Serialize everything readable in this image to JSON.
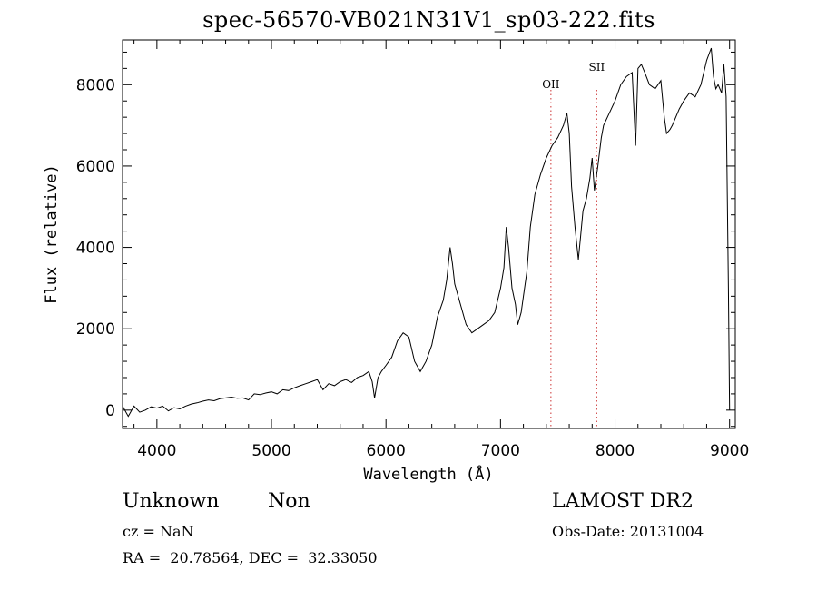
{
  "title": "spec-56570-VB021N31V1_sp03-222.fits",
  "info": {
    "class": "Unknown",
    "subclass": "Non",
    "survey": "LAMOST DR2",
    "cz": "cz = NaN",
    "obs_date": "Obs-Date: 20131004",
    "coords": "RA =  20.78564, DEC =  32.33050"
  },
  "chart_data": {
    "type": "line",
    "xlabel": "Wavelength (Å)",
    "ylabel": "Flux (relative)",
    "xlim": [
      3700,
      9050
    ],
    "ylim": [
      -450,
      9100
    ],
    "xticks": [
      4000,
      5000,
      6000,
      7000,
      8000,
      9000
    ],
    "yticks": [
      0,
      2000,
      4000,
      6000,
      8000
    ],
    "line_color": "#000000",
    "marker_color": "#cc3333",
    "lines": [
      {
        "name": "OII",
        "x": 7440
      },
      {
        "name": "SII",
        "x": 7840
      }
    ],
    "series": [
      {
        "x": [
          3700,
          3750,
          3800,
          3850,
          3900,
          3950,
          4000,
          4050,
          4100,
          4150,
          4200,
          4250,
          4300,
          4350,
          4400,
          4450,
          4500,
          4550,
          4600,
          4650,
          4700,
          4750,
          4800,
          4850,
          4900,
          4950,
          5000,
          5050,
          5100,
          5150,
          5200,
          5250,
          5300,
          5350,
          5400,
          5450,
          5500,
          5550,
          5600,
          5650,
          5700,
          5750,
          5800,
          5850,
          5880,
          5900,
          5930,
          5960,
          6000,
          6050,
          6100,
          6150,
          6200,
          6250,
          6300,
          6350,
          6400,
          6450,
          6500,
          6530,
          6560,
          6580,
          6600,
          6650,
          6700,
          6750,
          6800,
          6850,
          6900,
          6950,
          7000,
          7030,
          7050,
          7070,
          7100,
          7130,
          7150,
          7180,
          7200,
          7230,
          7260,
          7300,
          7350,
          7400,
          7450,
          7500,
          7550,
          7580,
          7600,
          7620,
          7650,
          7680,
          7700,
          7720,
          7750,
          7780,
          7800,
          7820,
          7850,
          7880,
          7900,
          7950,
          8000,
          8050,
          8100,
          8150,
          8180,
          8200,
          8230,
          8260,
          8300,
          8350,
          8400,
          8430,
          8450,
          8480,
          8500,
          8530,
          8560,
          8600,
          8650,
          8700,
          8750,
          8800,
          8840,
          8860,
          8880,
          8900,
          8930,
          8950,
          8970,
          8990,
          9000
        ],
        "y": [
          100,
          -150,
          100,
          -50,
          0,
          80,
          50,
          100,
          -20,
          60,
          30,
          100,
          150,
          180,
          220,
          250,
          230,
          280,
          300,
          320,
          290,
          300,
          250,
          400,
          380,
          420,
          450,
          400,
          500,
          480,
          550,
          600,
          650,
          700,
          750,
          500,
          650,
          600,
          700,
          750,
          680,
          800,
          850,
          950,
          700,
          300,
          800,
          950,
          1100,
          1300,
          1700,
          1900,
          1800,
          1200,
          950,
          1200,
          1600,
          2300,
          2700,
          3200,
          4000,
          3600,
          3100,
          2600,
          2100,
          1900,
          2000,
          2100,
          2200,
          2400,
          3000,
          3500,
          4500,
          4000,
          3000,
          2600,
          2100,
          2400,
          2800,
          3400,
          4500,
          5300,
          5800,
          6200,
          6500,
          6700,
          7000,
          7300,
          6800,
          5500,
          4500,
          3700,
          4300,
          4900,
          5200,
          5700,
          6200,
          5400,
          6000,
          6700,
          7000,
          7300,
          7600,
          8000,
          8200,
          8300,
          6500,
          8400,
          8500,
          8300,
          8000,
          7900,
          8100,
          7200,
          6800,
          6900,
          7000,
          7200,
          7400,
          7600,
          7800,
          7700,
          8000,
          8600,
          8900,
          8200,
          7900,
          8000,
          7800,
          8500,
          7700,
          3000,
          0
        ]
      }
    ]
  }
}
